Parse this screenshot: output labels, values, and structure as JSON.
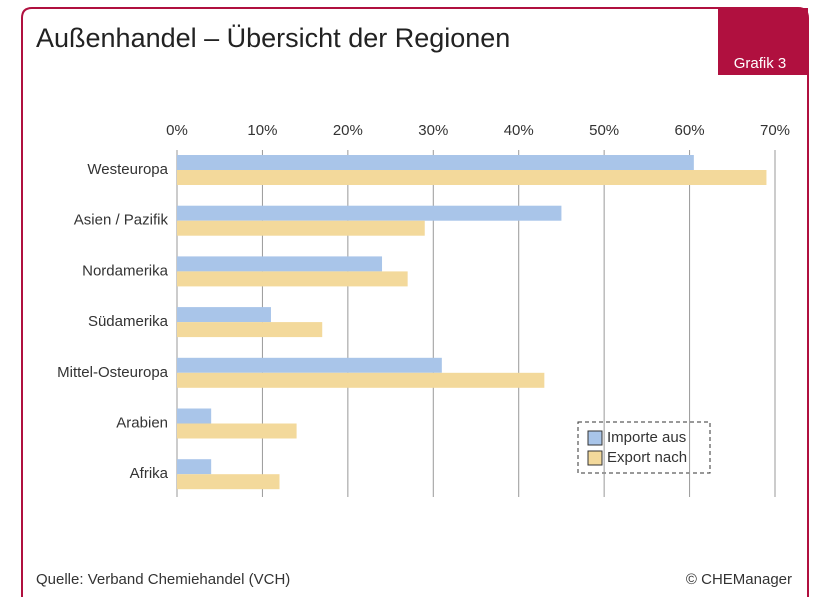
{
  "chart_data": {
    "type": "bar",
    "orientation": "horizontal",
    "title": "Außenhandel – Übersicht der Regionen",
    "badge": "Grafik 3",
    "source": "Quelle: Verband Chemiehandel (VCH)",
    "copyright": "© CHEManager",
    "categories": [
      "Westeuropa",
      "Asien / Pazifik",
      "Nordamerika",
      "Südamerika",
      "Mittel-Osteuropa",
      "Arabien",
      "Afrika"
    ],
    "series": [
      {
        "name": "Importe aus",
        "color": "#a9c5e9",
        "values": [
          60.5,
          45,
          24,
          11,
          31,
          4,
          4
        ]
      },
      {
        "name": "Export nach",
        "color": "#f3d99b",
        "values": [
          69,
          29,
          27,
          17,
          43,
          14,
          12
        ]
      }
    ],
    "xlim": [
      0,
      70
    ],
    "xticks": [
      {
        "value": 0,
        "label": "0%"
      },
      {
        "value": 10,
        "label": "10%"
      },
      {
        "value": 20,
        "label": "20%"
      },
      {
        "value": 30,
        "label": "30%"
      },
      {
        "value": 40,
        "label": "40%"
      },
      {
        "value": 50,
        "label": "50%"
      },
      {
        "value": 60,
        "label": "60%"
      },
      {
        "value": 70,
        "label": "70%"
      }
    ],
    "grid": true,
    "legend": "lower right"
  }
}
